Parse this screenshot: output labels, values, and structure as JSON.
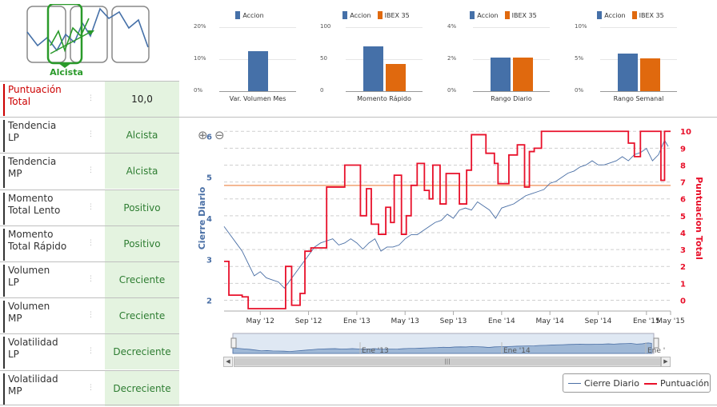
{
  "trend": {
    "label": "Alcista",
    "icon": "trend-selector-icon"
  },
  "indicators": [
    {
      "label1": "Puntuación",
      "label2": "Total",
      "value": "10,0"
    },
    {
      "label1": "Tendencia",
      "label2": "LP",
      "value": "Alcista"
    },
    {
      "label1": "Tendencia",
      "label2": "MP",
      "value": "Alcista"
    },
    {
      "label1": "Momento",
      "label2": "Total Lento",
      "value": "Positivo"
    },
    {
      "label1": "Momento",
      "label2": "Total Rápido",
      "value": "Positivo"
    },
    {
      "label1": "Volumen",
      "label2": "LP",
      "value": "Creciente"
    },
    {
      "label1": "Volumen",
      "label2": "MP",
      "value": "Creciente"
    },
    {
      "label1": "Volatilidad",
      "label2": "LP",
      "value": "Decreciente"
    },
    {
      "label1": "Volatilidad",
      "label2": "MP",
      "value": "Decreciente"
    }
  ],
  "colors": {
    "accion": "#4570a8",
    "ibex": "#e0690e",
    "price": "#4a6fa5",
    "score": "#e8102a",
    "positive": "#2e7d32"
  },
  "chart_data": [
    {
      "type": "bar",
      "title": "Var. Volumen Mes",
      "legend": [
        "Accion"
      ],
      "ticks": [
        "20%",
        "10%",
        "0%"
      ],
      "ylim": [
        0,
        20
      ],
      "series": [
        {
          "name": "Accion",
          "values": [
            12.5
          ]
        }
      ]
    },
    {
      "type": "bar",
      "title": "Momento Rápido",
      "legend": [
        "Accion",
        "IBEX 35"
      ],
      "ticks": [
        "100",
        "50",
        "0"
      ],
      "ylim": [
        0,
        100
      ],
      "series": [
        {
          "name": "Accion",
          "values": [
            70
          ]
        },
        {
          "name": "IBEX 35",
          "values": [
            42
          ]
        }
      ]
    },
    {
      "type": "bar",
      "title": "Rango Diario",
      "legend": [
        "Accion",
        "IBEX 35"
      ],
      "ticks": [
        "4%",
        "2%",
        "0%"
      ],
      "ylim": [
        0,
        4
      ],
      "series": [
        {
          "name": "Accion",
          "values": [
            2.1
          ]
        },
        {
          "name": "IBEX 35",
          "values": [
            2.1
          ]
        }
      ]
    },
    {
      "type": "bar",
      "title": "Rango Semanal",
      "legend": [
        "Accion",
        "IBEX 35"
      ],
      "ticks": [
        "10%",
        "5%",
        "0%"
      ],
      "ylim": [
        0,
        10
      ],
      "series": [
        {
          "name": "Accion",
          "values": [
            5.9
          ]
        },
        {
          "name": "IBEX 35",
          "values": [
            5.1
          ]
        }
      ]
    },
    {
      "type": "line",
      "ylabel": "Cierre Diario",
      "y2label": "Puntuacion Total",
      "ylim": [
        1.8,
        6.2
      ],
      "y2lim": [
        -0.5,
        10.2
      ],
      "yticks": [
        "2",
        "3",
        "4",
        "5",
        "6"
      ],
      "y2ticks": [
        "0",
        "1",
        "2",
        "3",
        "4",
        "5",
        "6",
        "7",
        "8",
        "9",
        "10"
      ],
      "xlim": [
        0,
        37
      ],
      "xticks": [
        {
          "label": "May '12",
          "x": 3
        },
        {
          "label": "Sep '12",
          "x": 7
        },
        {
          "label": "Ene '13",
          "x": 11
        },
        {
          "label": "May '13",
          "x": 15
        },
        {
          "label": "Sep '13",
          "x": 19
        },
        {
          "label": "Ene '14",
          "x": 23
        },
        {
          "label": "May '14",
          "x": 27
        },
        {
          "label": "Sep '14",
          "x": 31
        },
        {
          "label": "Ene '15",
          "x": 35
        },
        {
          "label": "May '15",
          "x": 37
        }
      ],
      "threshold": 4.8,
      "series": [
        {
          "name": "Cierre Diario",
          "axis": "left",
          "points": [
            [
              0,
              3.8
            ],
            [
              0.5,
              3.6
            ],
            [
              1,
              3.4
            ],
            [
              1.5,
              3.2
            ],
            [
              2,
              2.9
            ],
            [
              2.5,
              2.6
            ],
            [
              3,
              2.7
            ],
            [
              3.5,
              2.55
            ],
            [
              4,
              2.5
            ],
            [
              4.5,
              2.45
            ],
            [
              5,
              2.3
            ],
            [
              5.5,
              2.5
            ],
            [
              6,
              2.7
            ],
            [
              6.5,
              2.9
            ],
            [
              7,
              3.1
            ],
            [
              7.5,
              3.3
            ],
            [
              8,
              3.4
            ],
            [
              8.5,
              3.45
            ],
            [
              9,
              3.5
            ],
            [
              9.5,
              3.35
            ],
            [
              10,
              3.4
            ],
            [
              10.5,
              3.5
            ],
            [
              11,
              3.4
            ],
            [
              11.5,
              3.25
            ],
            [
              12,
              3.4
            ],
            [
              12.5,
              3.5
            ],
            [
              13,
              3.2
            ],
            [
              13.5,
              3.3
            ],
            [
              14,
              3.3
            ],
            [
              14.5,
              3.35
            ],
            [
              15,
              3.5
            ],
            [
              15.5,
              3.6
            ],
            [
              16,
              3.6
            ],
            [
              16.5,
              3.7
            ],
            [
              17,
              3.8
            ],
            [
              17.5,
              3.9
            ],
            [
              18,
              3.95
            ],
            [
              18.5,
              4.1
            ],
            [
              19,
              4.0
            ],
            [
              19.5,
              4.2
            ],
            [
              20,
              4.25
            ],
            [
              20.5,
              4.2
            ],
            [
              21,
              4.4
            ],
            [
              21.5,
              4.3
            ],
            [
              22,
              4.2
            ],
            [
              22.5,
              4.0
            ],
            [
              23,
              4.25
            ],
            [
              23.5,
              4.3
            ],
            [
              24,
              4.35
            ],
            [
              24.5,
              4.45
            ],
            [
              25,
              4.55
            ],
            [
              25.5,
              4.6
            ],
            [
              26,
              4.65
            ],
            [
              26.5,
              4.7
            ],
            [
              27,
              4.85
            ],
            [
              27.5,
              4.9
            ],
            [
              28,
              5.0
            ],
            [
              28.5,
              5.1
            ],
            [
              29,
              5.15
            ],
            [
              29.5,
              5.25
            ],
            [
              30,
              5.3
            ],
            [
              30.5,
              5.4
            ],
            [
              31,
              5.3
            ],
            [
              31.5,
              5.3
            ],
            [
              32,
              5.35
            ],
            [
              32.5,
              5.4
            ],
            [
              33,
              5.5
            ],
            [
              33.5,
              5.4
            ],
            [
              34,
              5.55
            ],
            [
              34.5,
              5.6
            ],
            [
              35,
              5.7
            ],
            [
              35.5,
              5.4
            ],
            [
              36,
              5.55
            ],
            [
              36.5,
              5.9
            ],
            [
              36.8,
              5.75
            ]
          ]
        },
        {
          "name": "Puntuación",
          "axis": "right",
          "points": [
            [
              0,
              2.3
            ],
            [
              0.4,
              2.3
            ],
            [
              0.4,
              0.3
            ],
            [
              1.5,
              0.3
            ],
            [
              1.5,
              0.2
            ],
            [
              2,
              0.2
            ],
            [
              2,
              -0.5
            ],
            [
              5.1,
              -0.5
            ],
            [
              5.1,
              2
            ],
            [
              5.6,
              2
            ],
            [
              5.6,
              -0.3
            ],
            [
              6.3,
              -0.3
            ],
            [
              6.3,
              0.4
            ],
            [
              6.7,
              0.4
            ],
            [
              6.7,
              2.9
            ],
            [
              7.2,
              2.9
            ],
            [
              7.2,
              3.1
            ],
            [
              8.5,
              3.1
            ],
            [
              8.5,
              6.7
            ],
            [
              10,
              6.7
            ],
            [
              10,
              8.0
            ],
            [
              11.3,
              8.0
            ],
            [
              11.3,
              5.0
            ],
            [
              11.8,
              5.0
            ],
            [
              11.8,
              6.6
            ],
            [
              12.2,
              6.6
            ],
            [
              12.2,
              4.5
            ],
            [
              12.8,
              4.5
            ],
            [
              12.8,
              3.9
            ],
            [
              13.4,
              3.9
            ],
            [
              13.4,
              5.5
            ],
            [
              13.8,
              5.5
            ],
            [
              13.8,
              4.6
            ],
            [
              14.1,
              4.6
            ],
            [
              14.1,
              7.4
            ],
            [
              14.7,
              7.4
            ],
            [
              14.7,
              3.9
            ],
            [
              15.1,
              3.9
            ],
            [
              15.1,
              5.0
            ],
            [
              15.5,
              5.0
            ],
            [
              15.5,
              6.8
            ],
            [
              16,
              6.8
            ],
            [
              16,
              8.1
            ],
            [
              16.6,
              8.1
            ],
            [
              16.6,
              6.5
            ],
            [
              17,
              6.5
            ],
            [
              17,
              6.0
            ],
            [
              17.3,
              6.0
            ],
            [
              17.3,
              8.0
            ],
            [
              17.9,
              8.0
            ],
            [
              17.9,
              5.7
            ],
            [
              18.4,
              5.7
            ],
            [
              18.4,
              7.5
            ],
            [
              19.5,
              7.5
            ],
            [
              19.5,
              5.7
            ],
            [
              20.1,
              5.7
            ],
            [
              20.1,
              7.7
            ],
            [
              20.5,
              7.7
            ],
            [
              20.5,
              9.8
            ],
            [
              21.7,
              9.8
            ],
            [
              21.7,
              8.7
            ],
            [
              22.4,
              8.7
            ],
            [
              22.4,
              8.1
            ],
            [
              22.7,
              8.1
            ],
            [
              22.7,
              6.9
            ],
            [
              23.6,
              6.9
            ],
            [
              23.6,
              8.6
            ],
            [
              24.3,
              8.6
            ],
            [
              24.3,
              9.2
            ],
            [
              24.9,
              9.2
            ],
            [
              24.9,
              6.7
            ],
            [
              25.3,
              6.7
            ],
            [
              25.3,
              8.8
            ],
            [
              25.7,
              8.8
            ],
            [
              25.7,
              9.0
            ],
            [
              26.3,
              9.0
            ],
            [
              26.3,
              10
            ],
            [
              33.5,
              10
            ],
            [
              33.5,
              9.3
            ],
            [
              34.0,
              9.3
            ],
            [
              34.0,
              8.5
            ],
            [
              34.5,
              8.5
            ],
            [
              34.5,
              10
            ],
            [
              36.2,
              10
            ],
            [
              36.2,
              7.1
            ],
            [
              36.5,
              7.1
            ],
            [
              36.5,
              10
            ],
            [
              37,
              10
            ]
          ]
        }
      ]
    }
  ],
  "navigator": {
    "labels": [
      "Ene '13",
      "Ene '14",
      "Ene '15"
    ]
  },
  "legend": {
    "price": "Cierre Diario",
    "score": "Puntuación"
  }
}
